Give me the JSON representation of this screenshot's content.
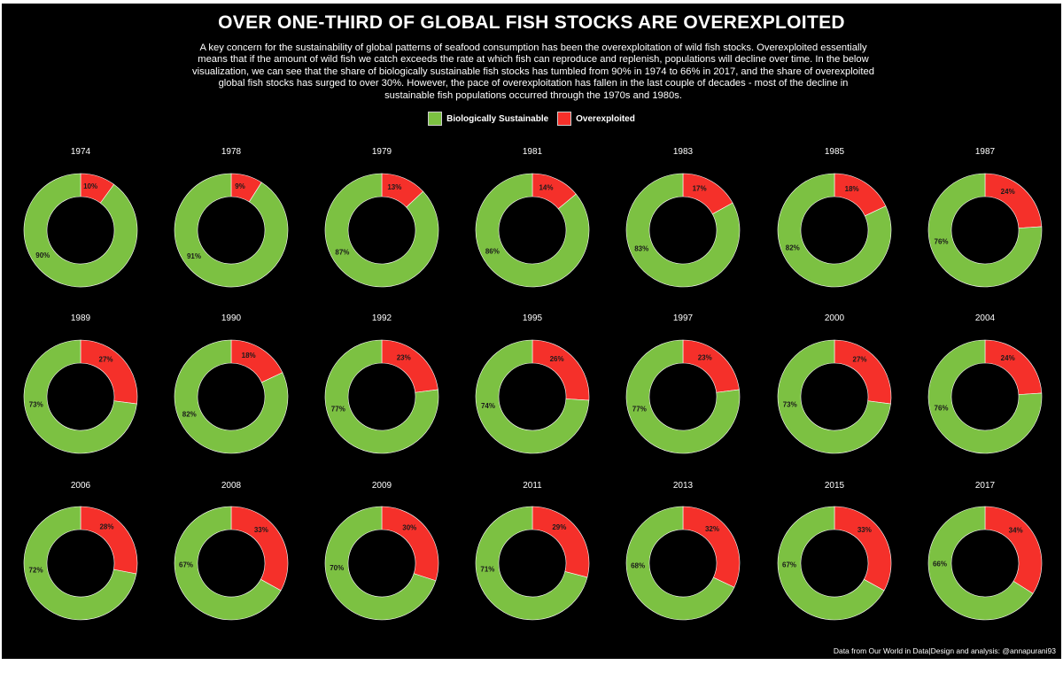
{
  "title": "OVER ONE-THIRD OF GLOBAL FISH STOCKS ARE OVEREXPLOITED",
  "subtitle": "A key concern for the sustainability of global patterns of seafood consumption has been the overexploitation of wild fish stocks. Overexploited essentially means that if the amount of wild fish we catch exceeds the rate at which fish can reproduce and replenish, populations will decline over time. In the below visualization, we can see that the share of biologically sustainable fish stocks has tumbled from 90% in 1974 to 66% in 2017, and the share of overexploited global fish stocks has surged to over 30%. However, the pace of overexploitation has fallen in the last couple of decades - most of the decline in sustainable fish populations occurred through the 1970s and 1980s.",
  "legend": {
    "sustainable_label": "Biologically Sustainable",
    "overexploited_label": "Overexploited"
  },
  "colors": {
    "sustainable": "#7cc142",
    "overexploited": "#f5302a",
    "background": "#000000"
  },
  "caption": "Data from Our World in Data|Design and analysis: @annapurani93",
  "chart_data": {
    "type": "donut",
    "title": "OVER ONE-THIRD OF GLOBAL FISH STOCKS ARE OVEREXPLOITED",
    "series_names": [
      "Biologically Sustainable",
      "Overexploited"
    ],
    "unit": "%",
    "years": [
      "1974",
      "1978",
      "1979",
      "1981",
      "1983",
      "1985",
      "1987",
      "1989",
      "1990",
      "1992",
      "1995",
      "1997",
      "2000",
      "2004",
      "2006",
      "2008",
      "2009",
      "2011",
      "2013",
      "2015",
      "2017"
    ],
    "sustainable": [
      90,
      91,
      87,
      86,
      83,
      82,
      76,
      73,
      82,
      77,
      74,
      77,
      73,
      76,
      72,
      67,
      70,
      71,
      68,
      67,
      66
    ],
    "overexploited": [
      10,
      9,
      13,
      14,
      17,
      18,
      24,
      27,
      18,
      23,
      26,
      23,
      27,
      24,
      28,
      33,
      30,
      29,
      32,
      33,
      34
    ],
    "legend_position": "top"
  }
}
